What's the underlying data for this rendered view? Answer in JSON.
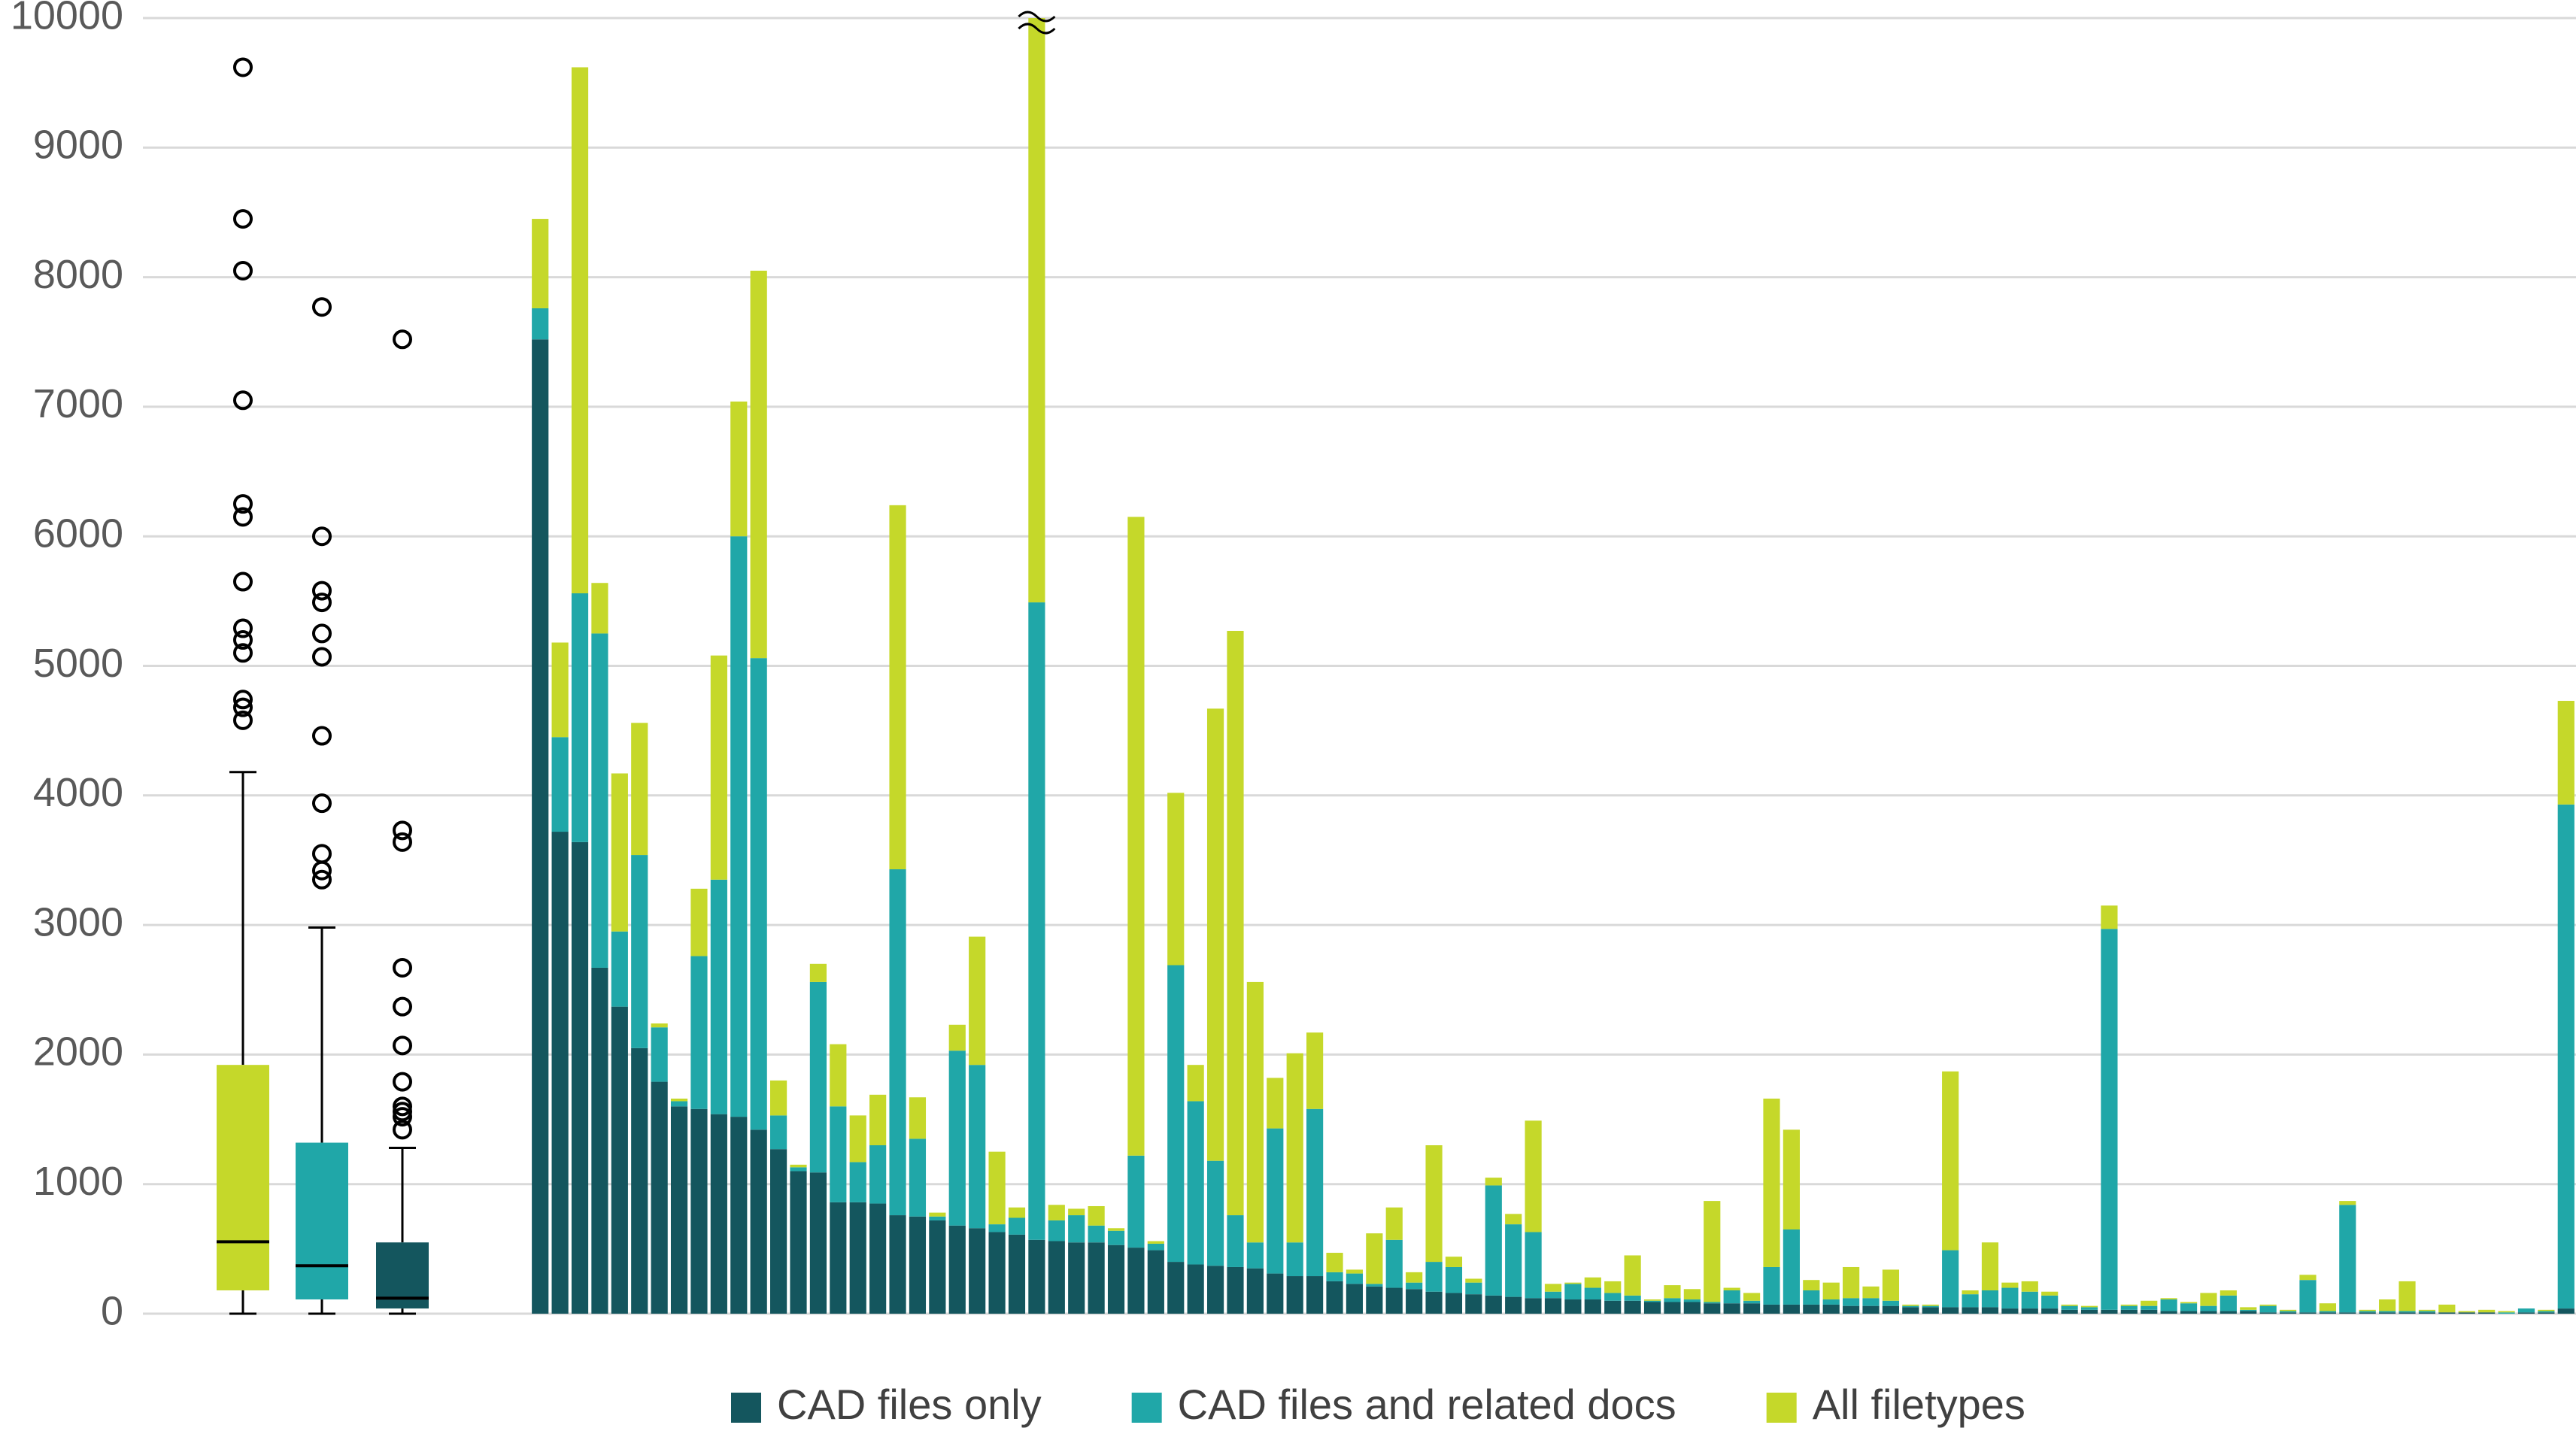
{
  "chart_data": {
    "type": "bar",
    "stacked": true,
    "grid": true,
    "legend": "bottom",
    "ylim": [
      0,
      10000
    ],
    "yticks": [
      0,
      1000,
      2000,
      3000,
      4000,
      5000,
      6000,
      7000,
      8000,
      9000,
      10000
    ],
    "boxes": [
      {
        "color": "#c5d82a",
        "whislo": 0,
        "q1": 180,
        "med": 555,
        "q3": 1920,
        "whishi": 4180,
        "fliers": [
          9620,
          8450,
          8050,
          7050,
          6250,
          6150,
          5650,
          5290,
          5200,
          5100,
          4740,
          4680,
          4580
        ]
      },
      {
        "color": "#20a7a8",
        "whislo": 0,
        "q1": 110,
        "med": 370,
        "q3": 1320,
        "whishi": 2980,
        "fliers": [
          7770,
          6000,
          5580,
          5490,
          5250,
          5070,
          4460,
          3940,
          3550,
          3420,
          3350
        ]
      },
      {
        "color": "#14565e",
        "whislo": 0,
        "q1": 40,
        "med": 120,
        "q3": 550,
        "whishi": 1280,
        "fliers": [
          7520,
          3730,
          3640,
          2670,
          2370,
          2070,
          1790,
          1600,
          1560,
          1520,
          1420
        ]
      }
    ],
    "series": [
      {
        "name": "CAD files only",
        "color": "#14565e",
        "values": [
          7520,
          3720,
          3640,
          2670,
          2370,
          2050,
          1790,
          1600,
          1580,
          1540,
          1520,
          1420,
          1270,
          1100,
          1090,
          860,
          860,
          850,
          760,
          750,
          720,
          680,
          660,
          630,
          610,
          570,
          560,
          550,
          550,
          530,
          510,
          490,
          400,
          380,
          370,
          360,
          350,
          310,
          290,
          290,
          250,
          230,
          210,
          200,
          190,
          170,
          160,
          150,
          140,
          130,
          120,
          120,
          110,
          110,
          100,
          100,
          90,
          90,
          90,
          80,
          80,
          80,
          70,
          70,
          70,
          70,
          60,
          60,
          60,
          50,
          50,
          50,
          50,
          50,
          40,
          40,
          40,
          30,
          30,
          30,
          30,
          30,
          20,
          20,
          20,
          20,
          20,
          10,
          10,
          10,
          10,
          10,
          10,
          10,
          10,
          10,
          10,
          10,
          10,
          0,
          10,
          10,
          40
        ]
      },
      {
        "name": "CAD files and related docs",
        "color": "#20a7a8",
        "values": [
          240,
          730,
          1920,
          2580,
          580,
          1490,
          420,
          40,
          1180,
          1810,
          4480,
          3640,
          260,
          30,
          1470,
          740,
          310,
          450,
          2670,
          600,
          30,
          1350,
          1260,
          60,
          130,
          4920,
          160,
          210,
          130,
          110,
          710,
          50,
          2290,
          1260,
          810,
          400,
          200,
          1120,
          260,
          1290,
          70,
          80,
          20,
          370,
          50,
          230,
          200,
          90,
          850,
          560,
          510,
          50,
          120,
          90,
          60,
          40,
          10,
          30,
          20,
          10,
          100,
          20,
          290,
          580,
          110,
          40,
          60,
          60,
          40,
          10,
          10,
          440,
          100,
          130,
          160,
          130,
          100,
          30,
          20,
          2940,
          30,
          30,
          90,
          60,
          40,
          120,
          10,
          50,
          10,
          250,
          10,
          830,
          10,
          10,
          10,
          10,
          0,
          0,
          0,
          10,
          30,
          10,
          3890
        ]
      },
      {
        "name": "All filetypes",
        "color": "#c5d82a",
        "values": [
          690,
          730,
          4060,
          390,
          1220,
          1020,
          30,
          20,
          520,
          1730,
          1040,
          2990,
          270,
          20,
          140,
          480,
          360,
          390,
          2810,
          320,
          30,
          200,
          990,
          560,
          80,
          4510,
          120,
          50,
          150,
          20,
          4930,
          20,
          1330,
          280,
          3490,
          4510,
          2010,
          390,
          1460,
          590,
          150,
          30,
          390,
          250,
          80,
          900,
          80,
          30,
          60,
          80,
          860,
          60,
          10,
          80,
          90,
          310,
          10,
          100,
          80,
          780,
          20,
          60,
          1300,
          770,
          80,
          130,
          240,
          90,
          240,
          10,
          10,
          1380,
          30,
          370,
          40,
          80,
          30,
          10,
          10,
          180,
          10,
          40,
          10,
          10,
          100,
          40,
          20,
          10,
          10,
          40,
          60,
          30,
          10,
          90,
          230,
          10,
          60,
          10,
          20,
          10,
          0,
          10,
          800
        ]
      }
    ]
  }
}
